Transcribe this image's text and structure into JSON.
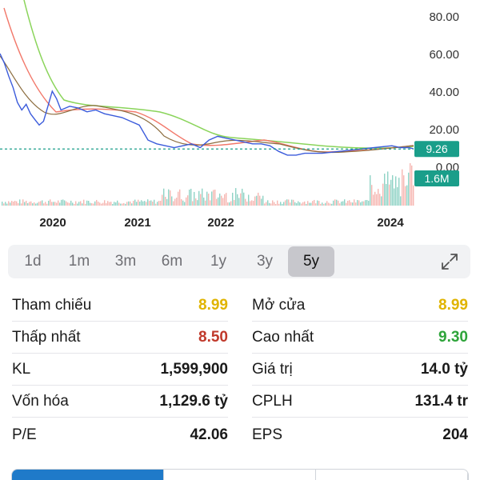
{
  "chart": {
    "y_ticks": [
      "80.00",
      "60.00",
      "40.00",
      "20.00",
      "0.00"
    ],
    "x_ticks": [
      "2020",
      "2021",
      "2022",
      "2024"
    ],
    "price_label": "9.26",
    "volume_label": "1.6M",
    "colors": {
      "price_line": "#3b5bdb",
      "ma_red": "#f2786a",
      "ma_green": "#8ad45a",
      "ma_brown": "#8c6d3f",
      "current_price": "#1a9e8a",
      "volume_up": "#8fd3c5",
      "volume_down": "#f6b6b1"
    }
  },
  "chart_data": {
    "type": "line",
    "y_axis_ticks": [
      0,
      20,
      40,
      60,
      80
    ],
    "x_axis_ticks": [
      "2020",
      "2021",
      "2022",
      "2024"
    ],
    "current_price": 9.26,
    "current_volume": "1.6M",
    "series": [
      {
        "values": [
          [
            2019.5,
            60
          ],
          [
            2019.55,
            55
          ],
          [
            2019.6,
            48
          ],
          [
            2019.65,
            42
          ],
          [
            2019.7,
            34
          ],
          [
            2019.75,
            30
          ],
          [
            2019.8,
            33
          ],
          [
            2019.85,
            28
          ],
          [
            2019.9,
            25
          ],
          [
            2019.95,
            22
          ],
          [
            2020.0,
            24
          ],
          [
            2020.05,
            32
          ],
          [
            2020.1,
            40
          ],
          [
            2020.15,
            36
          ],
          [
            2020.2,
            30
          ],
          [
            2020.3,
            32
          ],
          [
            2020.4,
            31
          ],
          [
            2020.5,
            29
          ],
          [
            2020.6,
            30
          ],
          [
            2020.7,
            28
          ],
          [
            2020.8,
            27
          ],
          [
            2020.9,
            26
          ],
          [
            2021.0,
            24
          ],
          [
            2021.1,
            22
          ],
          [
            2021.2,
            14
          ],
          [
            2021.3,
            12
          ],
          [
            2021.4,
            11
          ],
          [
            2021.5,
            10
          ],
          [
            2021.6,
            11
          ],
          [
            2021.7,
            12
          ],
          [
            2021.8,
            10
          ],
          [
            2021.9,
            14
          ],
          [
            2022.0,
            16
          ],
          [
            2022.1,
            15
          ],
          [
            2022.2,
            14
          ],
          [
            2022.3,
            13
          ],
          [
            2022.4,
            12
          ],
          [
            2022.5,
            12
          ],
          [
            2022.6,
            11
          ],
          [
            2022.7,
            8
          ],
          [
            2022.8,
            6
          ],
          [
            2022.9,
            6
          ],
          [
            2023.0,
            7
          ],
          [
            2023.2,
            7
          ],
          [
            2023.4,
            8
          ],
          [
            2023.6,
            9
          ],
          [
            2023.8,
            10
          ],
          [
            2024.0,
            11
          ],
          [
            2024.1,
            10
          ],
          [
            2024.2,
            10
          ],
          [
            2024.25,
            9.26
          ]
        ]
      }
    ]
  },
  "timeframe": {
    "tabs": [
      "1d",
      "1m",
      "3m",
      "6m",
      "1y",
      "3y",
      "5y"
    ],
    "active": "5y"
  },
  "stats": {
    "rows": [
      {
        "l1": "Tham chiếu",
        "v1": "8.99",
        "c1": "#e0b400",
        "l2": "Mở cửa",
        "v2": "8.99",
        "c2": "#e0b400"
      },
      {
        "l1": "Thấp nhất",
        "v1": "8.50",
        "c1": "#c0392b",
        "l2": "Cao nhất",
        "v2": "9.30",
        "c2": "#2ea43a"
      },
      {
        "l1": "KL",
        "v1": "1,599,900",
        "c1": "#1a1a1a",
        "l2": "Giá trị",
        "v2": "14.0 tỷ",
        "c2": "#1a1a1a"
      },
      {
        "l1": "Vốn hóa",
        "v1": "1,129.6 tỷ",
        "c1": "#1a1a1a",
        "l2": "CPLH",
        "v2": "131.4 tr",
        "c2": "#1a1a1a"
      },
      {
        "l1": "P/E",
        "v1": "42.06",
        "c1": "#1a1a1a",
        "l2": "EPS",
        "v2": "204",
        "c2": "#1a1a1a"
      }
    ]
  }
}
